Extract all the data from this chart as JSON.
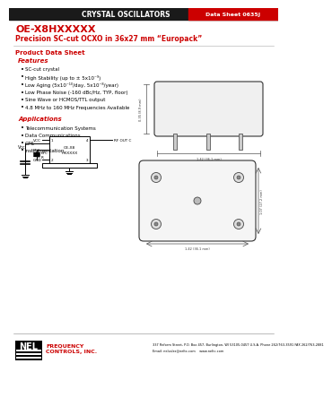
{
  "bg_color": "#ffffff",
  "header_bar_color": "#1a1a1a",
  "header_text": "CRYSTAL OSCILLATORS",
  "header_text_color": "#ffffff",
  "datasheet_label": "Data Sheet 0635J",
  "datasheet_label_bg": "#cc0000",
  "datasheet_label_color": "#ffffff",
  "title_line1": "OE-X8HXXXXX",
  "title_line2": "Precision SC-cut OCXO in 36x27 mm “Europack”",
  "title_color": "#cc0000",
  "section_product": "Product Data Sheet",
  "section_product_color": "#cc0000",
  "section_features": "Features",
  "section_features_color": "#cc0000",
  "features": [
    "SC-cut crystal",
    "High Stability (up to ± 5x10⁻⁹)",
    "Low Aging (5x10⁻¹⁰/day, 5x10⁻⁸/year)",
    "Low Phase Noise (-160 dBc/Hz, TYP, floor)",
    "Sine Wave or HCMOS/TTL output",
    "4.8 MHz to 160 MHz Frequencies Available"
  ],
  "section_applications": "Applications",
  "section_applications_color": "#cc0000",
  "applications": [
    "Telecommunication Systems",
    "Data Communications",
    "GPS",
    "Instrumentation"
  ],
  "footer_address": "337 Reform Street, P.O. Box 457, Burlington, WI 53105-0457 U.S.A. Phone 262/763-3591 FAX 262/763-2881",
  "footer_email": "Email: nelsales@neltc.com    www.neltc.com",
  "footer_color": "#000000"
}
